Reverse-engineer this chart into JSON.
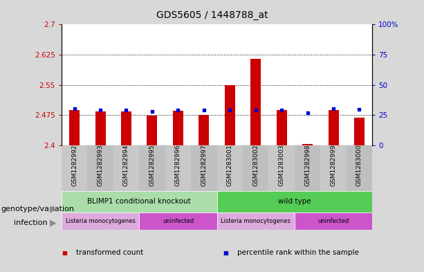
{
  "title": "GDS5605 / 1448788_at",
  "samples": [
    "GSM1282992",
    "GSM1282993",
    "GSM1282994",
    "GSM1282995",
    "GSM1282996",
    "GSM1282997",
    "GSM1283001",
    "GSM1283002",
    "GSM1283003",
    "GSM1282998",
    "GSM1282999",
    "GSM1283000"
  ],
  "red_values": [
    2.487,
    2.484,
    2.484,
    2.474,
    2.486,
    2.476,
    2.55,
    2.615,
    2.487,
    2.403,
    2.487,
    2.469
  ],
  "blue_values": [
    2.492,
    2.487,
    2.487,
    2.484,
    2.487,
    2.487,
    2.487,
    2.487,
    2.487,
    2.481,
    2.492,
    2.489
  ],
  "ymin": 2.4,
  "ymax": 2.7,
  "yticks_left": [
    2.4,
    2.475,
    2.55,
    2.625,
    2.7
  ],
  "yticks_right_vals": [
    0,
    25,
    50,
    75,
    100
  ],
  "yticks_right_labels": [
    "0",
    "25",
    "50",
    "75",
    "100%"
  ],
  "bar_color": "#cc0000",
  "dot_color": "#0000cc",
  "background_color": "#d8d8d8",
  "plot_bg": "#ffffff",
  "label_band_color": "#c8c8c8",
  "genotype_groups": [
    {
      "label": "BLIMP1 conditional knockout",
      "start": 0,
      "end": 6,
      "color": "#aaddaa"
    },
    {
      "label": "wild type",
      "start": 6,
      "end": 12,
      "color": "#55cc55"
    }
  ],
  "infection_groups": [
    {
      "label": "Listeria monocytogenes",
      "start": 0,
      "end": 3,
      "color": "#ddaadd"
    },
    {
      "label": "uninfected",
      "start": 3,
      "end": 6,
      "color": "#cc55cc"
    },
    {
      "label": "Listeria monocytogenes",
      "start": 6,
      "end": 9,
      "color": "#ddaadd"
    },
    {
      "label": "uninfected",
      "start": 9,
      "end": 12,
      "color": "#cc55cc"
    }
  ],
  "legend_items": [
    {
      "label": "transformed count",
      "color": "#cc0000"
    },
    {
      "label": "percentile rank within the sample",
      "color": "#0000cc"
    }
  ],
  "row_labels": [
    "genotype/variation",
    "infection"
  ],
  "title_fontsize": 10,
  "tick_fontsize": 7.5,
  "sample_fontsize": 6.5,
  "legend_fontsize": 7.5,
  "row_label_fontsize": 8
}
